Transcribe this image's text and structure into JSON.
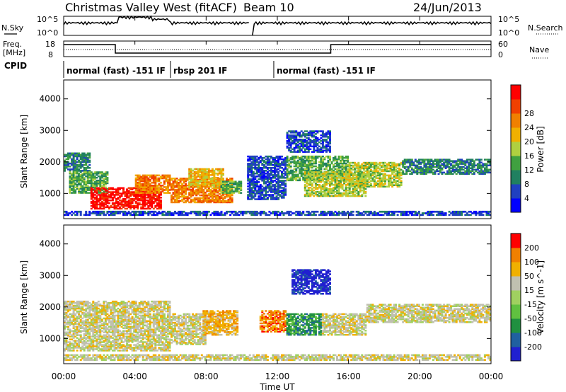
{
  "header": {
    "station": "Christmas Valley West (fitACF)",
    "beam": "Beam 10",
    "date": "24/Jun/2013"
  },
  "panels": {
    "nsky": {
      "left_label": "N.Sky",
      "right_label": "N.Search",
      "tick_top": "10^5",
      "tick_bottom": "10^0"
    },
    "freq": {
      "left_label_1": "Freq.",
      "left_label_2": "[MHz]",
      "ticks_left": [
        "18",
        "8"
      ],
      "ticks_right": [
        "60",
        "0"
      ],
      "right_label": "Nave"
    },
    "cpid": {
      "label": "CPID",
      "segments": [
        {
          "text": "normal (fast) -151 IF",
          "start_h": 0.0,
          "end_h": 6.0
        },
        {
          "text": "rbsp 201 IF",
          "start_h": 6.0,
          "end_h": 11.8
        },
        {
          "text": "normal (fast) -151 IF",
          "start_h": 11.8,
          "end_h": 24.0
        }
      ]
    }
  },
  "chart_data": [
    {
      "type": "heatmap",
      "name": "power",
      "ylabel": "Slant Range [km]",
      "ylim": [
        200,
        4600
      ],
      "y_ticks": [
        1000,
        2000,
        3000,
        4000
      ],
      "colorbar": {
        "label": "Power [dB]",
        "ticks": [
          "4",
          "8",
          "12",
          "16",
          "20",
          "24",
          "28"
        ],
        "colors": [
          "#0000ff",
          "#2040c0",
          "#208060",
          "#40a040",
          "#b0d040",
          "#f0b000",
          "#f08000",
          "#f04000",
          "#ff0000"
        ]
      },
      "regions": [
        {
          "t0": 0.0,
          "t1": 1.5,
          "r0": 1700,
          "r1": 2300,
          "level": 2
        },
        {
          "t0": 0.3,
          "t1": 2.5,
          "r0": 1000,
          "r1": 1700,
          "level": 3
        },
        {
          "t0": 1.5,
          "t1": 5.5,
          "r0": 500,
          "r1": 1200,
          "level": 8
        },
        {
          "t0": 4.0,
          "t1": 6.0,
          "r0": 1000,
          "r1": 1600,
          "level": 6
        },
        {
          "t0": 6.0,
          "t1": 9.5,
          "r0": 700,
          "r1": 1500,
          "level": 6
        },
        {
          "t0": 7.0,
          "t1": 9.0,
          "r0": 1200,
          "r1": 1800,
          "level": 5
        },
        {
          "t0": 8.8,
          "t1": 10.0,
          "r0": 1000,
          "r1": 1400,
          "level": 3
        },
        {
          "t0": 10.3,
          "t1": 12.5,
          "r0": 800,
          "r1": 2200,
          "level": 1
        },
        {
          "t0": 12.5,
          "t1": 16.0,
          "r0": 1400,
          "r1": 2200,
          "level": 3
        },
        {
          "t0": 13.5,
          "t1": 17.0,
          "r0": 900,
          "r1": 1700,
          "level": 4
        },
        {
          "t0": 16.0,
          "t1": 19.0,
          "r0": 1200,
          "r1": 2000,
          "level": 4
        },
        {
          "t0": 19.0,
          "t1": 24.0,
          "r0": 1600,
          "r1": 2100,
          "level": 2
        },
        {
          "t0": 12.5,
          "t1": 15.0,
          "r0": 2300,
          "r1": 3000,
          "level": 1
        },
        {
          "t0": 0.0,
          "t1": 24.0,
          "r0": 300,
          "r1": 450,
          "level": 1
        }
      ]
    },
    {
      "type": "heatmap",
      "name": "velocity",
      "ylabel": "Slant Range [km]",
      "ylim": [
        200,
        4600
      ],
      "y_ticks": [
        1000,
        2000,
        3000,
        4000
      ],
      "colorbar": {
        "label": "Velocity [m s^-1]",
        "ticks": [
          "200",
          "100",
          "50",
          "15",
          "-15",
          "-50",
          "-100",
          "-200"
        ],
        "colors": [
          "#2020d0",
          "#2060a0",
          "#209040",
          "#60c040",
          "#a0d060",
          "#c0c0b0",
          "#f0b000",
          "#f08000",
          "#ff0000"
        ]
      },
      "regions": [
        {
          "t0": 0.0,
          "t1": 6.0,
          "r0": 600,
          "r1": 2200,
          "level": 5
        },
        {
          "t0": 6.0,
          "t1": 8.0,
          "r0": 800,
          "r1": 1800,
          "level": 5
        },
        {
          "t0": 7.8,
          "t1": 9.8,
          "r0": 1100,
          "r1": 1900,
          "level": 6
        },
        {
          "t0": 11.0,
          "t1": 12.5,
          "r0": 1200,
          "r1": 1900,
          "level": 7
        },
        {
          "t0": 12.5,
          "t1": 14.5,
          "r0": 1100,
          "r1": 1800,
          "level": 2
        },
        {
          "t0": 14.5,
          "t1": 17.0,
          "r0": 1100,
          "r1": 1800,
          "level": 5
        },
        {
          "t0": 17.0,
          "t1": 24.0,
          "r0": 1500,
          "r1": 2100,
          "level": 5
        },
        {
          "t0": 12.8,
          "t1": 15.0,
          "r0": 2400,
          "r1": 3200,
          "level": 0
        },
        {
          "t0": 0.0,
          "t1": 24.0,
          "r0": 300,
          "r1": 500,
          "level": 5
        }
      ]
    }
  ],
  "x_axis": {
    "label": "Time UT",
    "ticks": [
      "00:00",
      "04:00",
      "08:00",
      "12:00",
      "16:00",
      "20:00",
      "00:00"
    ],
    "range_hours": [
      0,
      24
    ]
  }
}
